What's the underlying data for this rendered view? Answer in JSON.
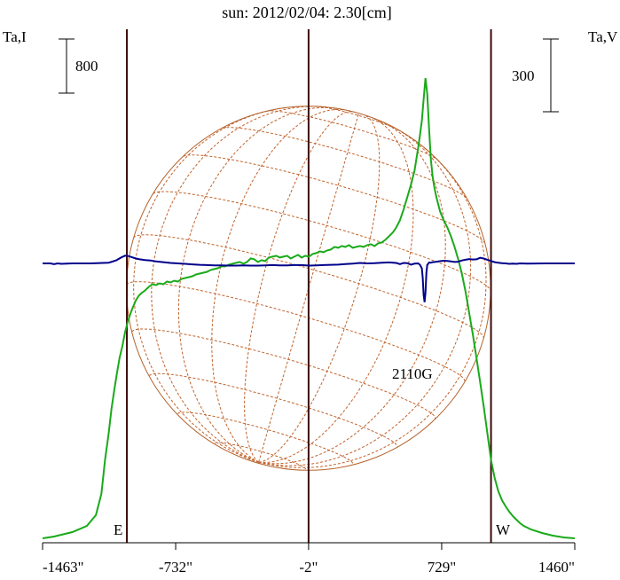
{
  "chart_data": {
    "type": "line",
    "title": "sun: 2012/02/04: 2.30[cm]",
    "left_axis_label": "Ta,I",
    "right_axis_label": "Ta,V",
    "x_ticks": [
      -1463,
      -732,
      -2,
      729,
      1460
    ],
    "x_tick_labels": [
      "-1463\"",
      "-732\"",
      "-2\"",
      "729\"",
      "1460\""
    ],
    "x_range": [
      -1463,
      1460
    ],
    "markers": {
      "east": {
        "label": "E",
        "x": -1000
      },
      "center": {
        "x": -2
      },
      "west": {
        "label": "W",
        "x": 1000
      }
    },
    "scale_bars": {
      "left": {
        "label": "800",
        "value": 800
      },
      "right": {
        "label": "300",
        "value": 300
      }
    },
    "annotation": {
      "text": "2110G",
      "x": 640
    },
    "colors": {
      "title": "#1a237e",
      "intensity": "#1aaa1a",
      "polarization": "#00008b",
      "disk": "#b5632c",
      "grid": "#c0632c",
      "markers": "#3c0a0a",
      "axes": "#000000"
    },
    "series": [
      {
        "name": "Ta,I",
        "axis": "left",
        "x": [
          -1463,
          -1400,
          -1300,
          -1220,
          -1170,
          -1140,
          -1120,
          -1100,
          -1085,
          -1070,
          -1055,
          -1040,
          -1025,
          -1010,
          -995,
          -980,
          -965,
          -950,
          -935,
          -920,
          -900,
          -880,
          -860,
          -840,
          -820,
          -800,
          -780,
          -760,
          -740,
          -720,
          -700,
          -680,
          -660,
          -640,
          -620,
          -600,
          -580,
          -560,
          -540,
          -520,
          -500,
          -480,
          -460,
          -440,
          -420,
          -400,
          -380,
          -360,
          -340,
          -320,
          -300,
          -280,
          -260,
          -240,
          -220,
          -200,
          -180,
          -160,
          -140,
          -120,
          -100,
          -80,
          -60,
          -40,
          -20,
          0,
          20,
          40,
          60,
          80,
          100,
          120,
          140,
          160,
          180,
          200,
          220,
          240,
          260,
          280,
          300,
          320,
          340,
          360,
          380,
          400,
          420,
          440,
          460,
          480,
          500,
          520,
          540,
          560,
          580,
          600,
          610,
          620,
          630,
          640,
          650,
          660,
          670,
          680,
          690,
          700,
          720,
          740,
          760,
          780,
          800,
          820,
          840,
          860,
          880,
          900,
          920,
          940,
          960,
          980,
          1000,
          1020,
          1040,
          1060,
          1080,
          1100,
          1120,
          1140,
          1160,
          1180,
          1220,
          1280,
          1340,
          1400,
          1460
        ],
        "y": [
          20,
          40,
          90,
          160,
          280,
          520,
          900,
          1200,
          1470,
          1680,
          1870,
          2050,
          2180,
          2340,
          2460,
          2550,
          2630,
          2700,
          2750,
          2780,
          2810,
          2850,
          2880,
          2870,
          2890,
          2880,
          2910,
          2900,
          2920,
          2910,
          2940,
          2950,
          2960,
          2970,
          2990,
          3000,
          3010,
          3020,
          3040,
          3050,
          3060,
          3080,
          3080,
          3100,
          3110,
          3120,
          3130,
          3110,
          3130,
          3170,
          3160,
          3130,
          3150,
          3140,
          3180,
          3190,
          3200,
          3180,
          3190,
          3200,
          3170,
          3190,
          3210,
          3180,
          3200,
          3190,
          3220,
          3230,
          3250,
          3240,
          3260,
          3270,
          3300,
          3290,
          3310,
          3300,
          3320,
          3290,
          3300,
          3310,
          3300,
          3320,
          3330,
          3310,
          3340,
          3350,
          3380,
          3420,
          3460,
          3520,
          3600,
          3720,
          3860,
          4000,
          4160,
          4420,
          4560,
          4720,
          4960,
          5200,
          5020,
          4620,
          4280,
          4080,
          3960,
          3860,
          3700,
          3600,
          3520,
          3420,
          3300,
          3160,
          3000,
          2800,
          2560,
          2320,
          2050,
          1780,
          1500,
          1200,
          900,
          700,
          550,
          450,
          380,
          320,
          270,
          230,
          190,
          160,
          120,
          80,
          50,
          30,
          20
        ],
        "min": 0,
        "max": 5500
      },
      {
        "name": "Ta,V",
        "axis": "right",
        "x": [
          -1463,
          -1420,
          -1400,
          -1380,
          -1360,
          -1300,
          -1200,
          -1100,
          -1060,
          -1030,
          -1010,
          -990,
          -970,
          -950,
          -930,
          -900,
          -870,
          -840,
          -800,
          -760,
          -720,
          -680,
          -640,
          -600,
          -560,
          -520,
          -480,
          -440,
          -400,
          -360,
          -320,
          -280,
          -240,
          -200,
          -160,
          -120,
          -80,
          -40,
          0,
          40,
          80,
          120,
          160,
          200,
          240,
          280,
          320,
          360,
          400,
          440,
          480,
          500,
          520,
          540,
          560,
          580,
          600,
          610,
          620,
          625,
          630,
          635,
          640,
          645,
          650,
          655,
          660,
          670,
          680,
          690,
          700,
          720,
          740,
          760,
          780,
          800,
          820,
          840,
          860,
          880,
          900,
          920,
          940,
          960,
          980,
          1000,
          1020,
          1040,
          1060,
          1080,
          1100,
          1120,
          1140,
          1160,
          1200,
          1300,
          1400,
          1460
        ],
        "y": [
          0,
          0,
          -3,
          0,
          -2,
          0,
          0,
          3,
          12,
          25,
          32,
          30,
          25,
          20,
          17,
          14,
          12,
          8,
          5,
          2,
          0,
          -2,
          -4,
          -6,
          -7,
          -8,
          -8,
          -9,
          -9,
          -8,
          -9,
          -9,
          -8,
          -7,
          -8,
          -8,
          -7,
          -7,
          -9,
          -8,
          -7,
          -6,
          -5,
          -3,
          -1,
          2,
          0,
          1,
          3,
          4,
          2,
          -3,
          2,
          1,
          -5,
          -1,
          0,
          -6,
          -20,
          -60,
          -130,
          -160,
          -120,
          -40,
          -6,
          -2,
          4,
          3,
          5,
          6,
          7,
          9,
          11,
          10,
          8,
          6,
          7,
          12,
          15,
          18,
          16,
          17,
          23,
          20,
          15,
          10,
          5,
          3,
          1,
          0,
          -2,
          -1,
          -2,
          0,
          -1,
          0,
          0,
          0
        ],
        "min": -450,
        "max": 450
      }
    ]
  }
}
